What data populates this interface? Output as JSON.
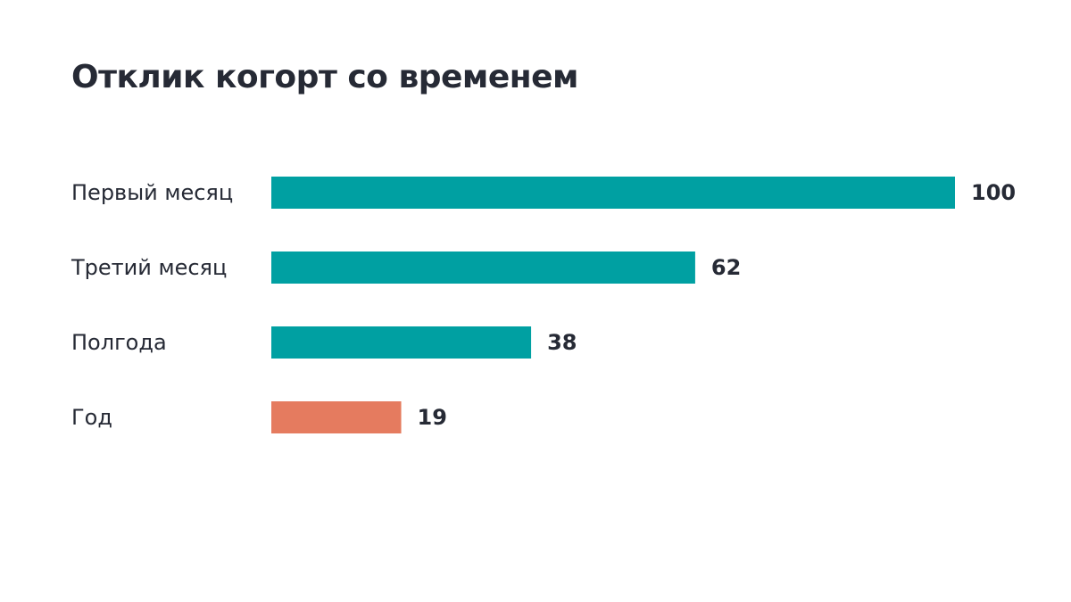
{
  "chart_data": {
    "type": "bar",
    "orientation": "horizontal",
    "title": "Отклик когорт со временем",
    "categories": [
      "Первый месяц",
      "Третий месяц",
      "Полгода",
      "Год"
    ],
    "values": [
      100,
      62,
      38,
      19
    ],
    "value_labels": [
      "100",
      "62",
      "38",
      "19"
    ],
    "xlim": [
      0,
      100
    ],
    "grid": false,
    "legend": "none",
    "colors": {
      "primary": "#00a0a2",
      "highlight": "#e57b5f",
      "text": "#262a35"
    },
    "highlight_index": 3
  }
}
